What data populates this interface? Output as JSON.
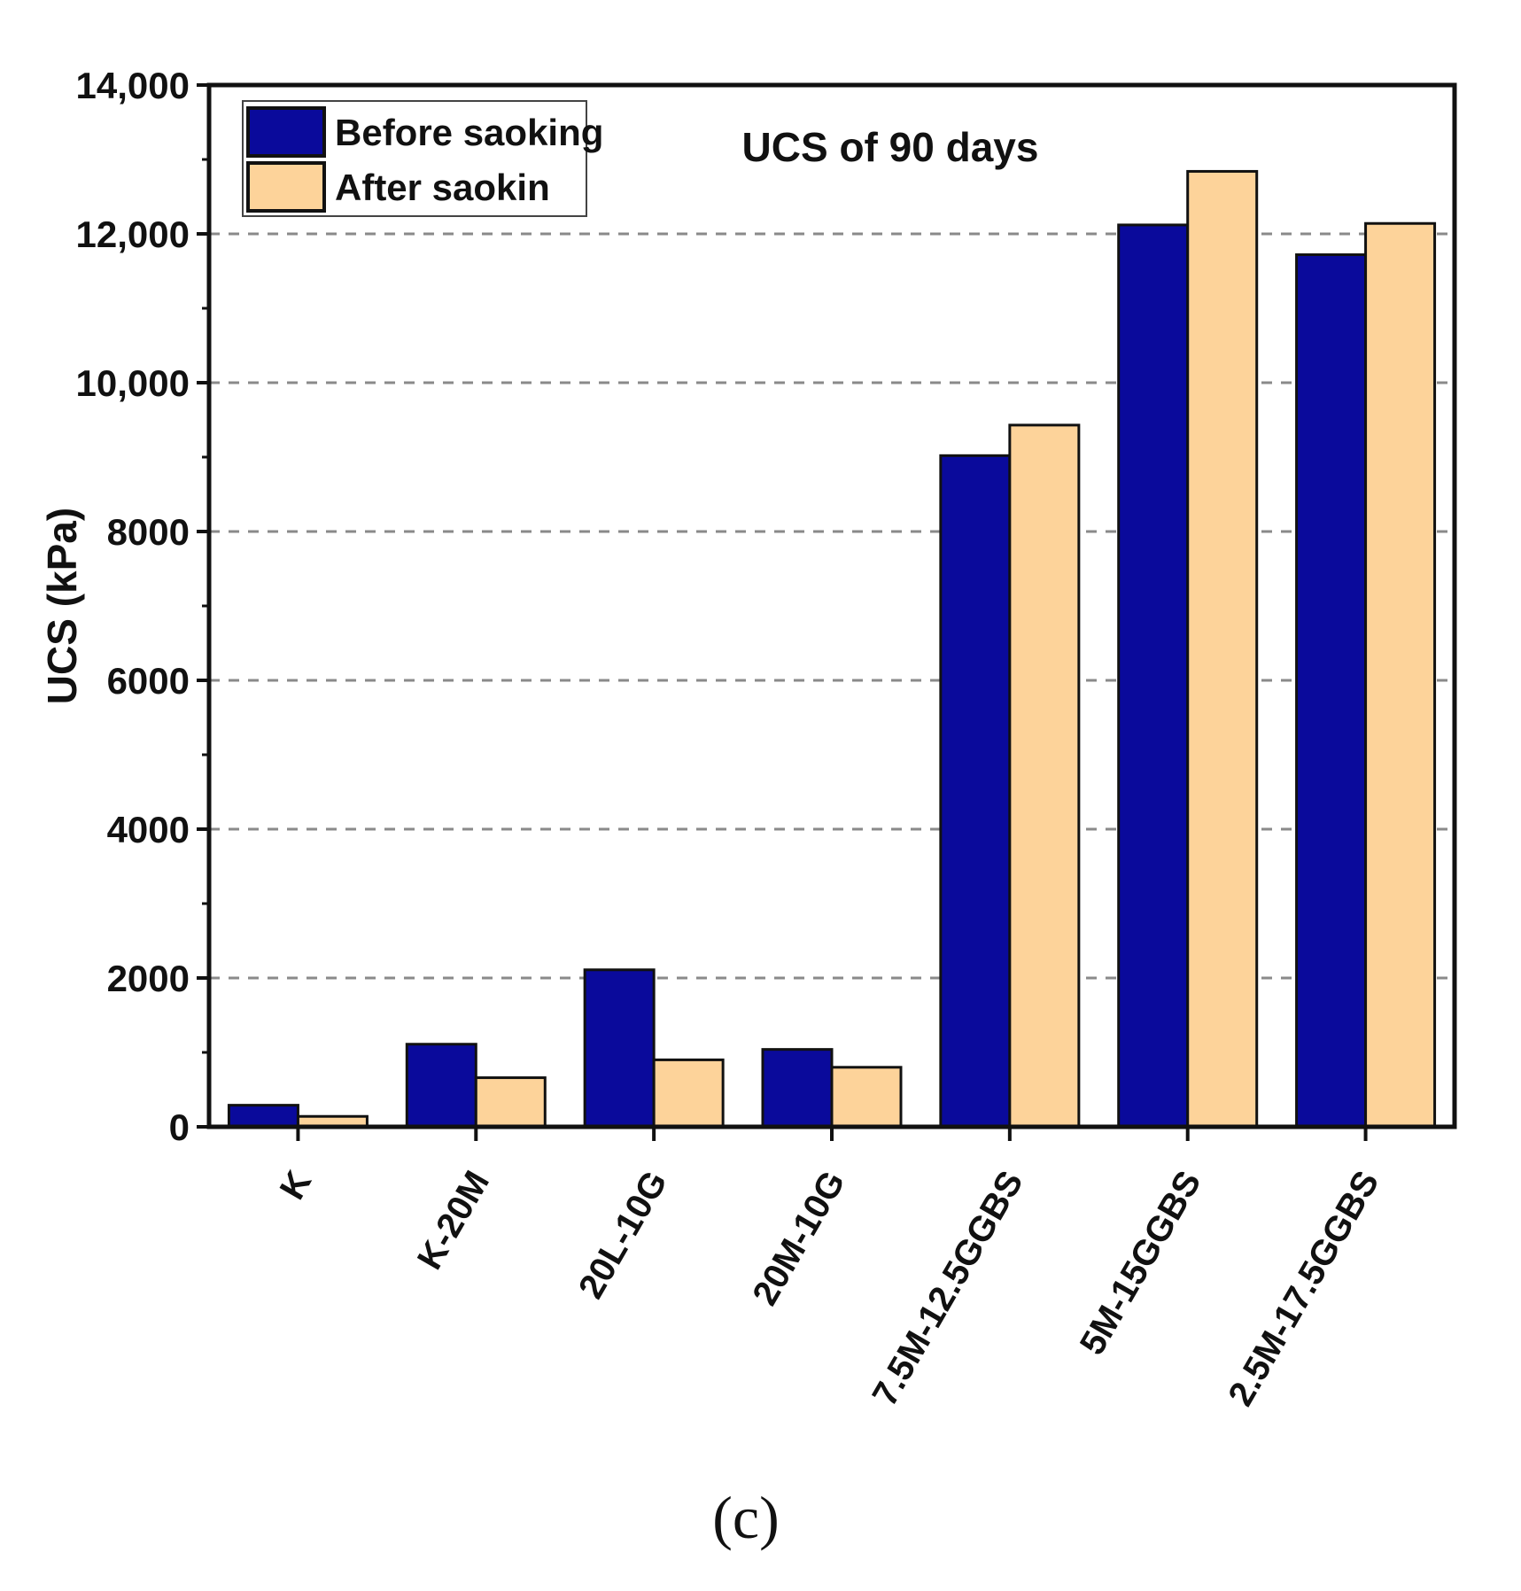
{
  "chart_data": {
    "type": "bar",
    "title": "UCS of 90 days",
    "xlabel": "",
    "ylabel": "UCS (kPa)",
    "ylim": [
      0,
      14000
    ],
    "yticks": [
      0,
      2000,
      4000,
      6000,
      8000,
      10000,
      12000,
      14000
    ],
    "ytick_labels": [
      "0",
      "2000",
      "4000",
      "6000",
      "8000",
      "10,000",
      "12,000",
      "14,000"
    ],
    "grid": "horizontal dashed",
    "legend_position": "top-left",
    "categories": [
      "K",
      "K-20M",
      "20L-10G",
      "20M-10G",
      "7.5M-12.5GGBS",
      "5M-15GGBS",
      "2.5M-17.5GGBS"
    ],
    "series": [
      {
        "name": "Before saoking",
        "color": "#0a0a9b",
        "values": [
          290,
          1110,
          2110,
          1040,
          9020,
          12120,
          11720
        ]
      },
      {
        "name": "After saokin",
        "color": "#fdd39a",
        "values": [
          140,
          660,
          900,
          800,
          9430,
          12840,
          12140
        ]
      }
    ]
  },
  "caption": "(c)"
}
